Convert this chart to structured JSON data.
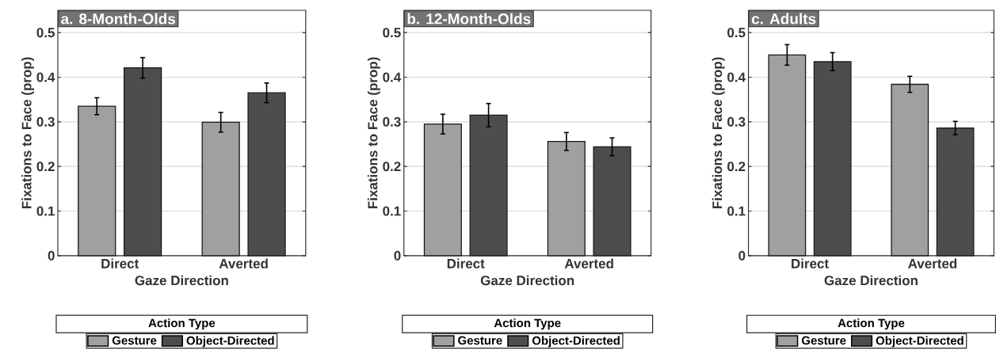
{
  "chart_data": [
    {
      "type": "bar",
      "title": "a. 8-Month-Olds",
      "xlabel": "Gaze Direction",
      "ylabel": "Fixations to Face (prop)",
      "legend_title": "Action Type",
      "categories": [
        "Direct",
        "Averted"
      ],
      "ylim": [
        0,
        0.55
      ],
      "yticks": [
        0,
        0.1,
        0.2,
        0.3,
        0.4,
        0.5
      ],
      "grid": "y",
      "legend": "bottom",
      "series": [
        {
          "name": "Gesture",
          "color": "#a0a0a0",
          "values": [
            0.335,
            0.299
          ],
          "errors": [
            0.019,
            0.022
          ]
        },
        {
          "name": "Object-Directed",
          "color": "#4d4d4d",
          "values": [
            0.421,
            0.365
          ],
          "errors": [
            0.023,
            0.022
          ]
        }
      ]
    },
    {
      "type": "bar",
      "title": "b. 12-Month-Olds",
      "xlabel": "Gaze Direction",
      "ylabel": "Fixations to Face (prop)",
      "legend_title": "Action Type",
      "categories": [
        "Direct",
        "Averted"
      ],
      "ylim": [
        0,
        0.55
      ],
      "yticks": [
        0,
        0.1,
        0.2,
        0.3,
        0.4,
        0.5
      ],
      "grid": "y",
      "legend": "bottom",
      "series": [
        {
          "name": "Gesture",
          "color": "#a0a0a0",
          "values": [
            0.295,
            0.256
          ],
          "errors": [
            0.022,
            0.02
          ]
        },
        {
          "name": "Object-Directed",
          "color": "#4d4d4d",
          "values": [
            0.315,
            0.244
          ],
          "errors": [
            0.026,
            0.02
          ]
        }
      ]
    },
    {
      "type": "bar",
      "title": "c. Adults",
      "xlabel": "Gaze Direction",
      "ylabel": "Fixations to Face (prop)",
      "legend_title": "Action Type",
      "categories": [
        "Direct",
        "Averted"
      ],
      "ylim": [
        0,
        0.55
      ],
      "yticks": [
        0,
        0.1,
        0.2,
        0.3,
        0.4,
        0.5
      ],
      "grid": "y",
      "legend": "bottom",
      "series": [
        {
          "name": "Gesture",
          "color": "#a0a0a0",
          "values": [
            0.45,
            0.384
          ],
          "errors": [
            0.023,
            0.018
          ]
        },
        {
          "name": "Object-Directed",
          "color": "#4d4d4d",
          "values": [
            0.435,
            0.286
          ],
          "errors": [
            0.02,
            0.015
          ]
        }
      ]
    }
  ]
}
